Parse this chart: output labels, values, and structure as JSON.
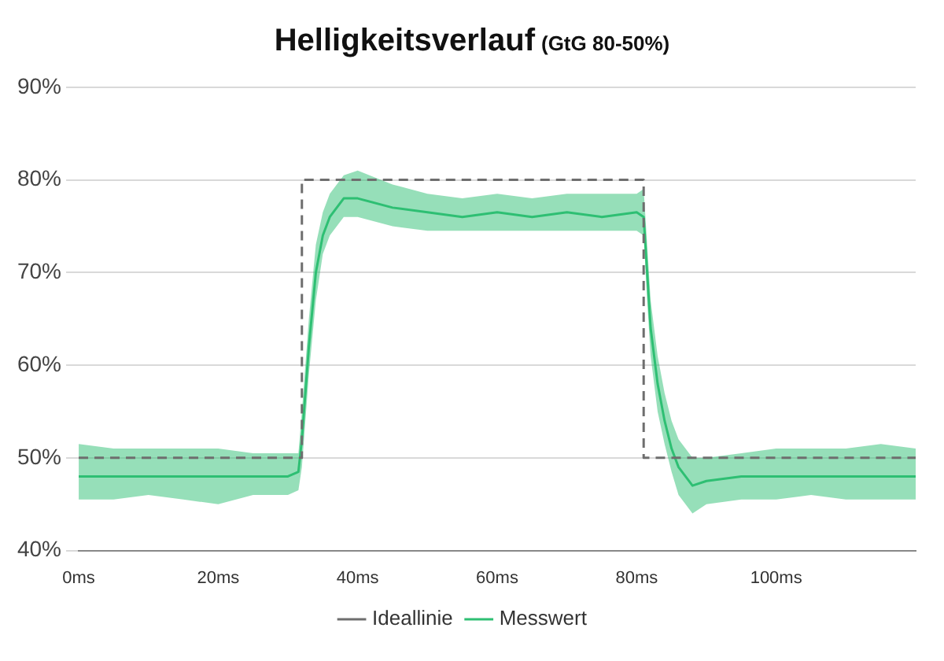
{
  "chart_data": {
    "type": "line",
    "title": "Helligkeitsverlauf",
    "subtitle": "(GtG 80-50%)",
    "xlim": [
      0,
      120
    ],
    "xticks": [
      {
        "value": 0,
        "label": "0ms"
      },
      {
        "value": 20,
        "label": "20ms"
      },
      {
        "value": 40,
        "label": "40ms"
      },
      {
        "value": 60,
        "label": "60ms"
      },
      {
        "value": 80,
        "label": "80ms"
      },
      {
        "value": 100,
        "label": "100ms"
      }
    ],
    "ylim": [
      40,
      90
    ],
    "yticks": [
      {
        "value": 40,
        "label": "40%"
      },
      {
        "value": 50,
        "label": "50%"
      },
      {
        "value": 60,
        "label": "60%"
      },
      {
        "value": 70,
        "label": "70%"
      },
      {
        "value": 80,
        "label": "80%"
      },
      {
        "value": 90,
        "label": "90%"
      }
    ],
    "grid": "y",
    "legend": "bottom",
    "marker": "none",
    "series": [
      {
        "name": "Messwert",
        "color": "#2ebf73",
        "line_style": "solid",
        "x": [
          0,
          5,
          10,
          15,
          20,
          25,
          30,
          31.5,
          32,
          33,
          34,
          35,
          36,
          38,
          40,
          45,
          50,
          55,
          60,
          65,
          70,
          75,
          80,
          81,
          81.5,
          82,
          83,
          84,
          85,
          86,
          88,
          90,
          95,
          100,
          105,
          110,
          115,
          120
        ],
        "values": [
          48,
          48,
          48,
          48,
          48,
          48,
          48,
          48.5,
          52,
          62,
          70,
          74,
          76,
          78,
          78,
          77,
          76.5,
          76,
          76.5,
          76,
          76.5,
          76,
          76.5,
          76,
          70,
          64,
          58,
          54,
          51,
          49,
          47,
          47.5,
          48,
          48,
          48,
          48,
          48,
          48
        ],
        "lower": [
          45.5,
          45.5,
          46,
          45.5,
          45,
          46,
          46,
          46.5,
          49,
          59,
          67,
          72,
          74,
          76,
          76,
          75,
          74.5,
          74.5,
          74.5,
          74.5,
          74.5,
          74.5,
          74.5,
          74,
          67,
          61,
          55,
          51.5,
          48.5,
          46,
          44,
          45,
          45.5,
          45.5,
          46,
          45.5,
          45.5,
          45.5
        ],
        "upper": [
          51.5,
          51,
          51,
          51,
          51,
          50.5,
          50.5,
          50.5,
          55,
          65,
          73,
          76.5,
          78.5,
          80.5,
          81,
          79.5,
          78.5,
          78,
          78.5,
          78,
          78.5,
          78.5,
          78.5,
          79,
          73,
          67,
          61,
          57,
          54,
          52,
          50,
          50,
          50.5,
          51,
          51,
          51,
          51.5,
          51
        ]
      },
      {
        "name": "Ideallinie",
        "color": "#6e6e6e",
        "line_style": "dashed",
        "x": [
          0,
          32,
          32,
          81,
          81,
          120
        ],
        "values": [
          50,
          50,
          80,
          80,
          50,
          50
        ]
      }
    ]
  }
}
